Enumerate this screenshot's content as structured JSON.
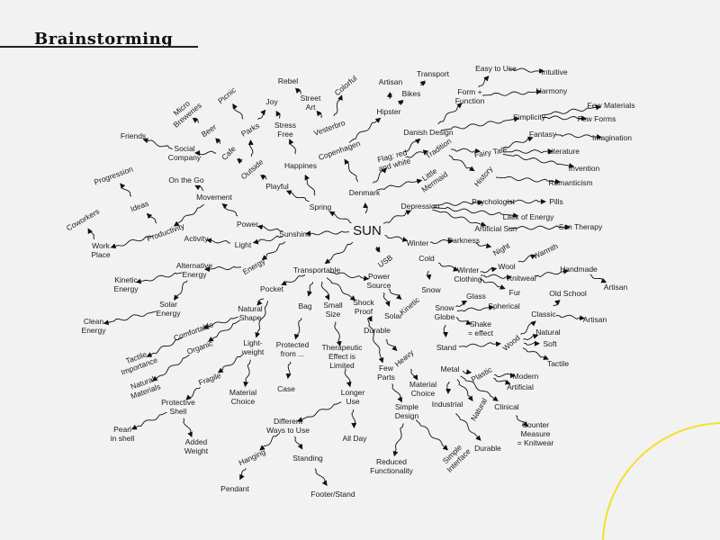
{
  "header": {
    "title": "Brainstorming"
  },
  "accent_color": "#f2e12c",
  "nodes": [
    {
      "id": "sun",
      "text": "SUN"
    },
    {
      "id": "sunshine",
      "text": "Sunshine"
    },
    {
      "id": "power",
      "text": "Power"
    },
    {
      "id": "light",
      "text": "Light"
    },
    {
      "id": "energy",
      "text": "Energy"
    },
    {
      "id": "movement",
      "text": "Movement"
    },
    {
      "id": "onthego",
      "text": "On the Go"
    },
    {
      "id": "productivity",
      "text": "Productivity"
    },
    {
      "id": "activity",
      "text": "Activity"
    },
    {
      "id": "ideas",
      "text": "Ideas"
    },
    {
      "id": "progression",
      "text": "Progression"
    },
    {
      "id": "coworkers",
      "text": "Coworkers"
    },
    {
      "id": "workplace",
      "text": "Work\nPlace"
    },
    {
      "id": "altenergy",
      "text": "Alternative\nEnergy"
    },
    {
      "id": "kinetic1",
      "text": "Kinetic\nEnergy"
    },
    {
      "id": "solarenergy",
      "text": "Solar\nEnergy"
    },
    {
      "id": "cleanenergy",
      "text": "Clean\nEnergy"
    },
    {
      "id": "spring",
      "text": "Spring"
    },
    {
      "id": "playful",
      "text": "Playful"
    },
    {
      "id": "happines",
      "text": "Happines"
    },
    {
      "id": "outside",
      "text": "Outside"
    },
    {
      "id": "cafe",
      "text": "Cafe"
    },
    {
      "id": "beer",
      "text": "Beer"
    },
    {
      "id": "social",
      "text": "Social\nCompany"
    },
    {
      "id": "friends",
      "text": "Friends"
    },
    {
      "id": "micro",
      "text": "Micro\nBreweries"
    },
    {
      "id": "picnic",
      "text": "Picnic"
    },
    {
      "id": "parks",
      "text": "Parks"
    },
    {
      "id": "joy",
      "text": "Joy"
    },
    {
      "id": "stressfree",
      "text": "Stress\nFree"
    },
    {
      "id": "rebel",
      "text": "Rebel"
    },
    {
      "id": "streetart",
      "text": "Street\nArt"
    },
    {
      "id": "vesterbro",
      "text": "Vesterbro"
    },
    {
      "id": "colorful",
      "text": "Colorful"
    },
    {
      "id": "copenhagen",
      "text": "Copenhagen"
    },
    {
      "id": "hipster",
      "text": "Hipster"
    },
    {
      "id": "artisan1",
      "text": "Artisan"
    },
    {
      "id": "bikes",
      "text": "Bikes"
    },
    {
      "id": "transport",
      "text": "Transport"
    },
    {
      "id": "denmark",
      "text": "Denmark"
    },
    {
      "id": "danishdesign",
      "text": "Danish Design"
    },
    {
      "id": "formfunction",
      "text": "Form +\nFunction"
    },
    {
      "id": "easytouse",
      "text": "Easy to Use"
    },
    {
      "id": "intuitive",
      "text": "Intuitive"
    },
    {
      "id": "harmony",
      "text": "Harmony"
    },
    {
      "id": "simplicity",
      "text": "Simplicity"
    },
    {
      "id": "fewmaterials",
      "text": "Few Materials"
    },
    {
      "id": "fewforms",
      "text": "Few Forms"
    },
    {
      "id": "flag",
      "text": "Flag: red\nand white"
    },
    {
      "id": "tradition",
      "text": "Tradition"
    },
    {
      "id": "fairytale",
      "text": "Fairy Tale"
    },
    {
      "id": "fantasy",
      "text": "Fantasy"
    },
    {
      "id": "imagination",
      "text": "Imagination"
    },
    {
      "id": "literature",
      "text": "Literature"
    },
    {
      "id": "invention",
      "text": "Invention"
    },
    {
      "id": "history",
      "text": "History"
    },
    {
      "id": "romanticism",
      "text": "Romanticism"
    },
    {
      "id": "littlemermaid",
      "text": "Little\nMermaid"
    },
    {
      "id": "depression",
      "text": "Depression"
    },
    {
      "id": "psychologist",
      "text": "Psychologist"
    },
    {
      "id": "pills",
      "text": "Pills"
    },
    {
      "id": "lackofenergy",
      "text": "Lack of Energy"
    },
    {
      "id": "artificialsun",
      "text": "Artificial Sun"
    },
    {
      "id": "suntherapy",
      "text": "Sun Therapy"
    },
    {
      "id": "winter",
      "text": "Winter"
    },
    {
      "id": "darkness",
      "text": "Darkness"
    },
    {
      "id": "night",
      "text": "Night"
    },
    {
      "id": "cold",
      "text": "Cold"
    },
    {
      "id": "winterclothing",
      "text": "Winter\nClothing"
    },
    {
      "id": "wool",
      "text": "Wool"
    },
    {
      "id": "warmth",
      "text": "Warmth"
    },
    {
      "id": "knitwear",
      "text": "Knitwear"
    },
    {
      "id": "handmade",
      "text": "Handmade"
    },
    {
      "id": "artisan2",
      "text": "Artisan"
    },
    {
      "id": "fur",
      "text": "Fur"
    },
    {
      "id": "snow",
      "text": "Snow"
    },
    {
      "id": "glass",
      "text": "Glass"
    },
    {
      "id": "snowglobe",
      "text": "Snow\nGlobe"
    },
    {
      "id": "spherical",
      "text": "Spherical"
    },
    {
      "id": "shake",
      "text": "Shake\n= effect"
    },
    {
      "id": "classic",
      "text": "Classic"
    },
    {
      "id": "oldschool",
      "text": "Old School"
    },
    {
      "id": "artisan3",
      "text": "Artisan"
    },
    {
      "id": "stand",
      "text": "Stand"
    },
    {
      "id": "wood",
      "text": "Wood"
    },
    {
      "id": "natural1",
      "text": "Natural"
    },
    {
      "id": "soft",
      "text": "Soft"
    },
    {
      "id": "tactile1",
      "text": "Tactile"
    },
    {
      "id": "metal",
      "text": "Metal"
    },
    {
      "id": "plastic",
      "text": "Plastic"
    },
    {
      "id": "modern",
      "text": "Modern"
    },
    {
      "id": "artificial",
      "text": "Artificial"
    },
    {
      "id": "clinical",
      "text": "Clinical"
    },
    {
      "id": "natural2",
      "text": "Natural"
    },
    {
      "id": "countermeasure",
      "text": "Counter\nMeasure\n= Knitwear"
    },
    {
      "id": "industrial",
      "text": "Industrial"
    },
    {
      "id": "durable1",
      "text": "Durable"
    },
    {
      "id": "transportable",
      "text": "Transportable"
    },
    {
      "id": "usb",
      "text": "USB"
    },
    {
      "id": "powersource",
      "text": "Power\nSource"
    },
    {
      "id": "kinetic2",
      "text": "Kinetic"
    },
    {
      "id": "solar",
      "text": "Solar"
    },
    {
      "id": "pocket",
      "text": "Pocket"
    },
    {
      "id": "naturalshape",
      "text": "Natural\nShape"
    },
    {
      "id": "comfortable",
      "text": "Comfortable"
    },
    {
      "id": "organic",
      "text": "Organic"
    },
    {
      "id": "tactileimp",
      "text": "Tactile\nImportance"
    },
    {
      "id": "naturalmaterials",
      "text": "Natural\nMaterials"
    },
    {
      "id": "lightweight",
      "text": "Light-\nweight"
    },
    {
      "id": "fragile",
      "text": "Fragile"
    },
    {
      "id": "materialchoice1",
      "text": "Material\nChoice"
    },
    {
      "id": "protectiveshell",
      "text": "Protective\nShell"
    },
    {
      "id": "pearl",
      "text": "Pearl\nin shell"
    },
    {
      "id": "addedweight",
      "text": "Added\nWeight"
    },
    {
      "id": "bag",
      "text": "Bag"
    },
    {
      "id": "protectedfrom",
      "text": "Protected\nfrom ..."
    },
    {
      "id": "case",
      "text": "Case"
    },
    {
      "id": "smallsize",
      "text": "Small\nSize"
    },
    {
      "id": "therapeutic",
      "text": "Therapeutic\nEffect is\nLimited"
    },
    {
      "id": "longeruse",
      "text": "Longer\nUse"
    },
    {
      "id": "allday",
      "text": "All Day"
    },
    {
      "id": "differentways",
      "text": "Different\nWays to Use"
    },
    {
      "id": "hanging",
      "text": "Hanging"
    },
    {
      "id": "pendant",
      "text": "Pendant"
    },
    {
      "id": "standing",
      "text": "Standing"
    },
    {
      "id": "footerstand",
      "text": "Footer/Stand"
    },
    {
      "id": "shockproof",
      "text": "Shock\nProof"
    },
    {
      "id": "durable2",
      "text": "Durable"
    },
    {
      "id": "heavy",
      "text": "Heavy"
    },
    {
      "id": "materialchoice2",
      "text": "Material\nChoice"
    },
    {
      "id": "fewparts",
      "text": "Few\nParts"
    },
    {
      "id": "simpledesign",
      "text": "Simple\nDesign"
    },
    {
      "id": "reduced",
      "text": "Reduced\nFunctionality"
    },
    {
      "id": "simpleinterface",
      "text": "Simple\nInterface"
    }
  ]
}
